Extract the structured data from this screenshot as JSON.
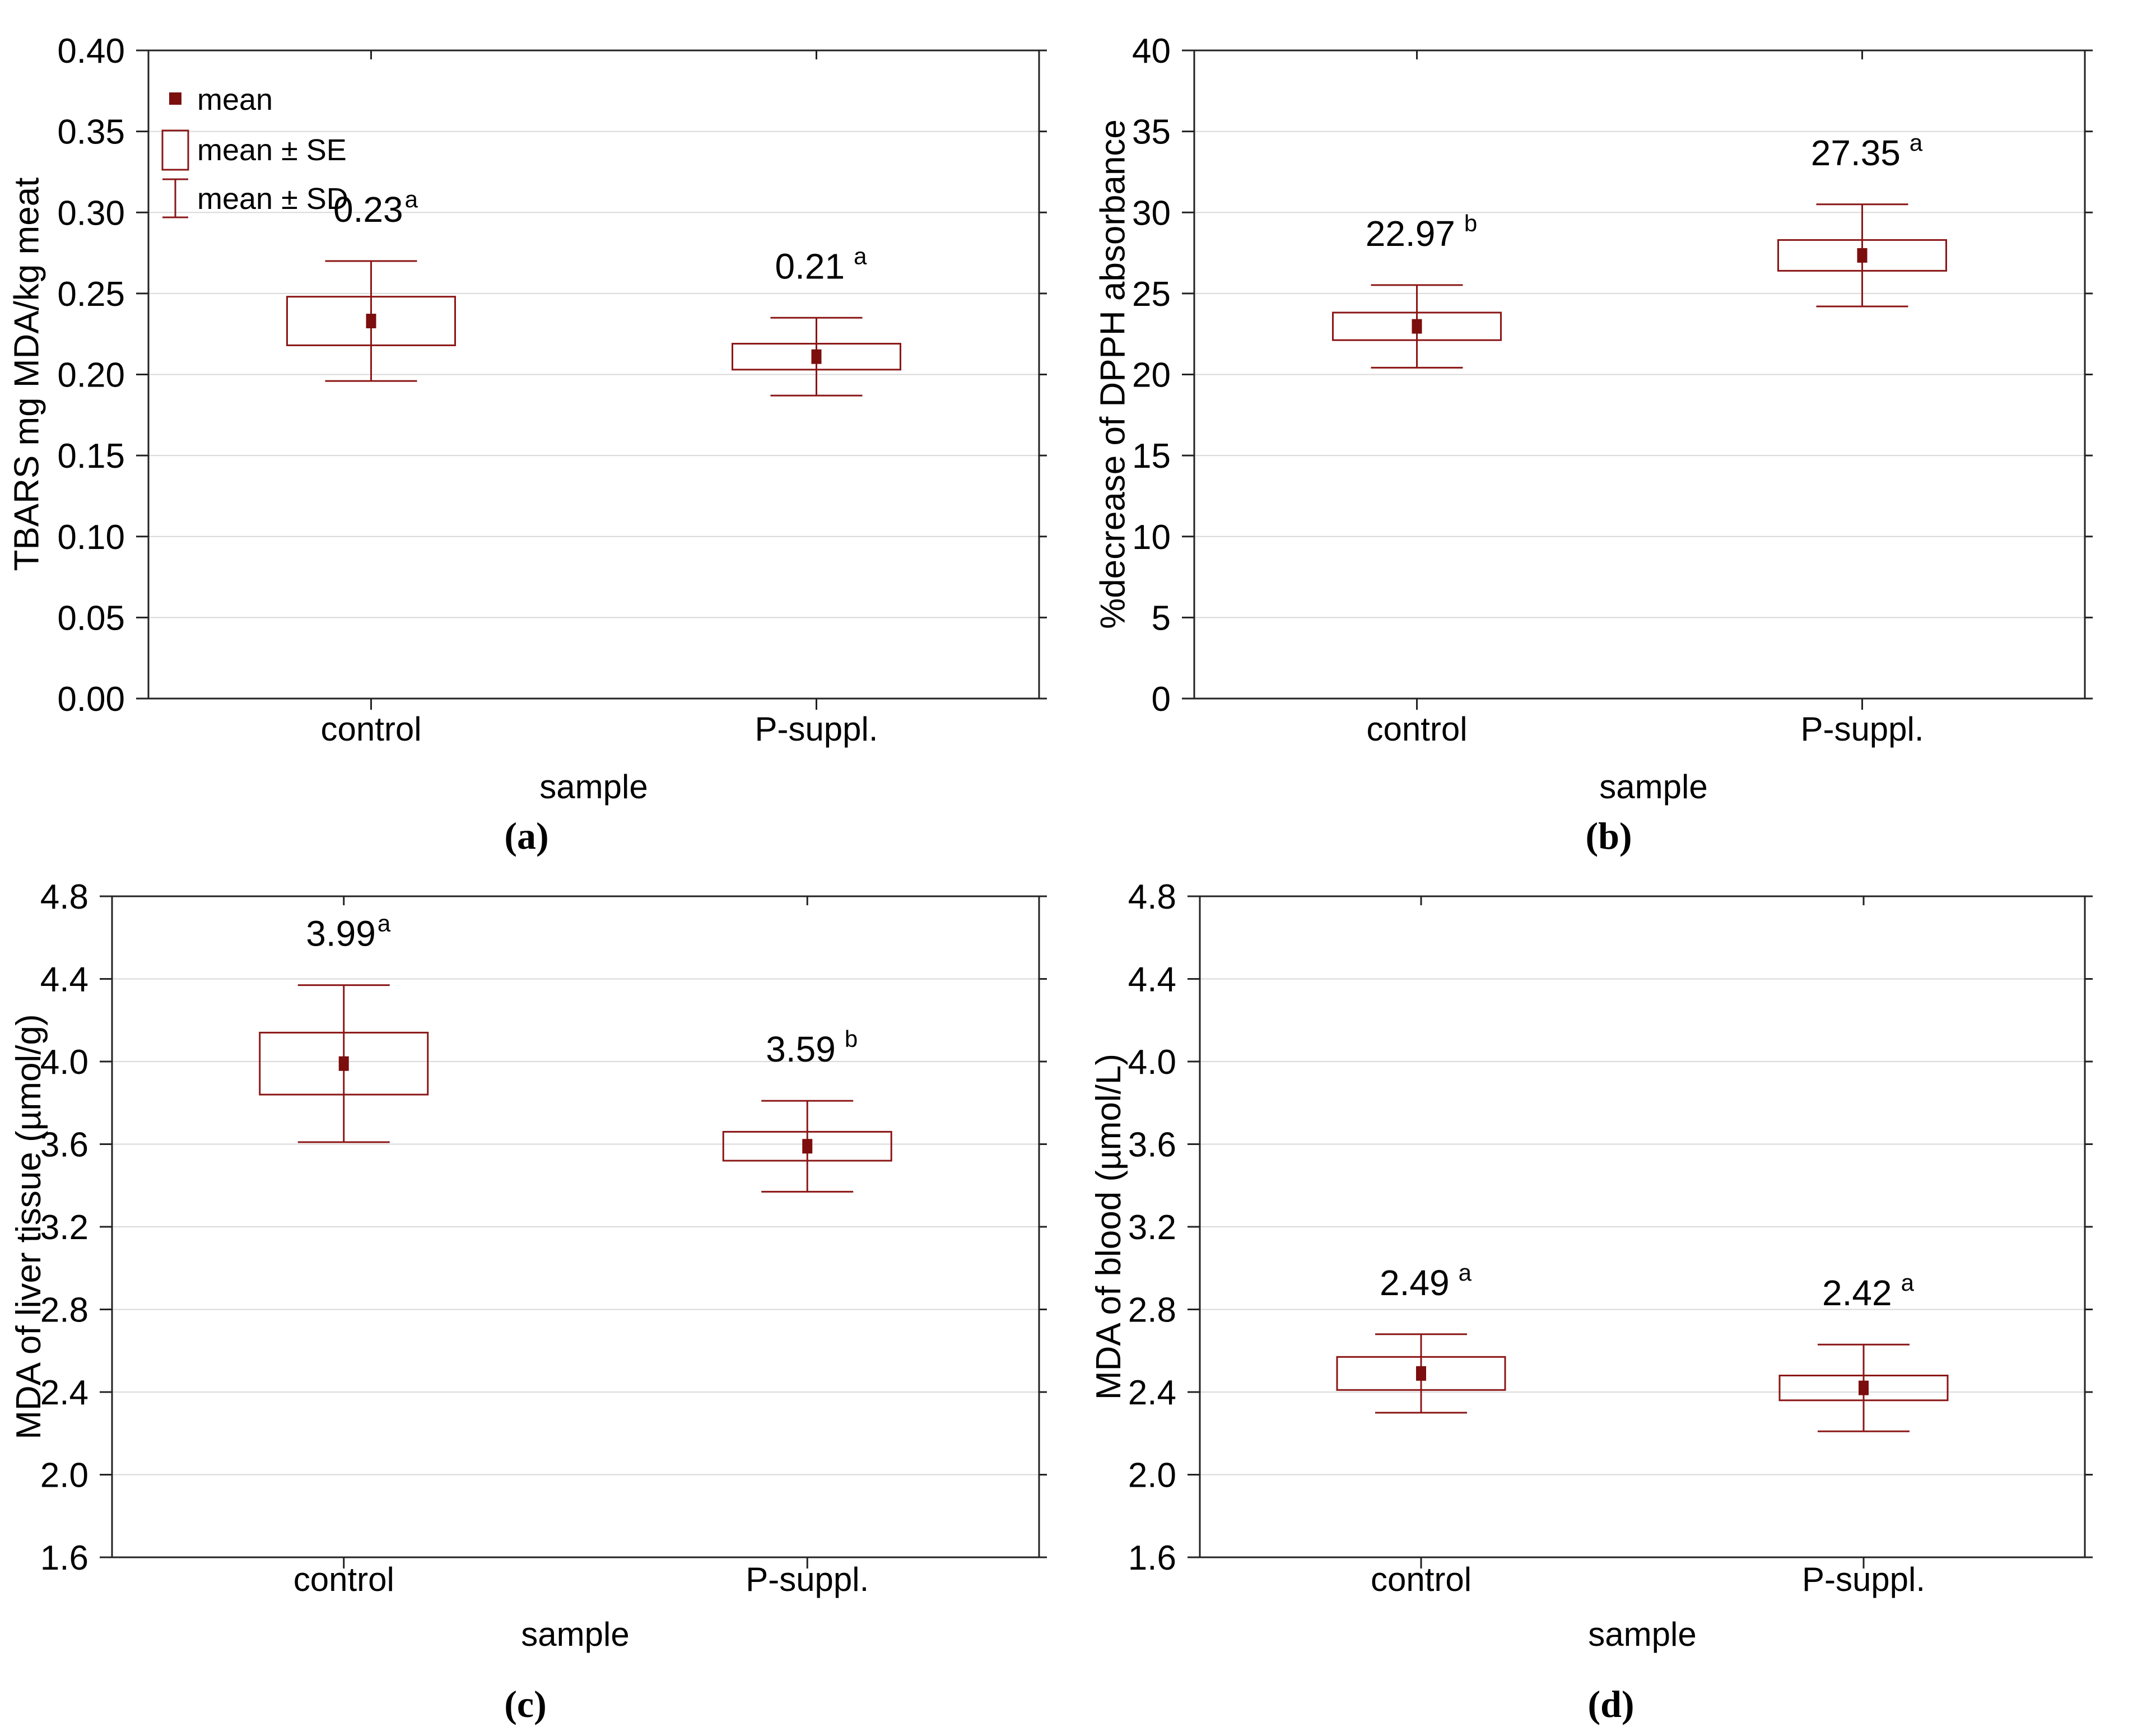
{
  "figure": {
    "background": "#ffffff",
    "kind": "2x2 panel figure of statistical box plots (mean / mean±SE / mean±SD)"
  },
  "colors": {
    "series_stroke": "#8b1616",
    "mean_fill": "#7c0e0e",
    "gridline": "#d9d9d9",
    "axis": "#222222",
    "text": "#000000"
  },
  "legend": {
    "items": [
      {
        "label": "mean",
        "glyph": "filled-square"
      },
      {
        "label": "mean ± SE",
        "glyph": "open-box"
      },
      {
        "label": "mean ± SD",
        "glyph": "whisker"
      }
    ]
  },
  "chart_data": [
    {
      "type": "box",
      "id": "a",
      "panel_label": "(a)",
      "ylabel": "TBARS mg MDA/kg meat",
      "xlabel": "sample",
      "categories": [
        "control",
        "P-suppl."
      ],
      "ylim": [
        0.0,
        0.4
      ],
      "ytick_step": 0.05,
      "ytick_decimals": 2,
      "grid": "horizontal",
      "legend": [
        "mean",
        "mean ± SE",
        "mean ± SD"
      ],
      "legend_position": "top-left-inside",
      "series": [
        {
          "category": "control",
          "mean": 0.233,
          "annotation": "0.23",
          "sig": "a",
          "sig_gap": false,
          "se": 0.015,
          "sd": 0.037,
          "box": [
            0.218,
            0.248
          ],
          "whisker": [
            0.196,
            0.27
          ]
        },
        {
          "category": "P-suppl.",
          "mean": 0.211,
          "annotation": "0.21",
          "sig": "a",
          "sig_gap": true,
          "se": 0.008,
          "sd": 0.024,
          "box": [
            0.203,
            0.219
          ],
          "whisker": [
            0.187,
            0.235
          ]
        }
      ]
    },
    {
      "type": "box",
      "id": "b",
      "panel_label": "(b)",
      "ylabel": "%decrease of DPPH absorbance",
      "xlabel": "sample",
      "categories": [
        "control",
        "P-suppl."
      ],
      "ylim": [
        0,
        40
      ],
      "ytick_step": 5,
      "ytick_decimals": 0,
      "grid": "horizontal",
      "series": [
        {
          "category": "control",
          "mean": 22.97,
          "annotation": "22.97",
          "sig": "b",
          "sig_gap": true,
          "se": 0.85,
          "sd": 2.55,
          "box": [
            22.12,
            23.82
          ],
          "whisker": [
            20.42,
            25.52
          ]
        },
        {
          "category": "P-suppl.",
          "mean": 27.35,
          "annotation": "27.35",
          "sig": "a",
          "sig_gap": true,
          "se": 0.95,
          "sd": 3.15,
          "box": [
            26.4,
            28.3
          ],
          "whisker": [
            24.2,
            30.5
          ]
        }
      ]
    },
    {
      "type": "box",
      "id": "c",
      "panel_label": "(c)",
      "ylabel": "MDA of liver tissue (µmol/g)",
      "xlabel": "sample",
      "categories": [
        "control",
        "P-suppl."
      ],
      "ylim": [
        1.6,
        4.8
      ],
      "ytick_step": 0.4,
      "ytick_decimals": 1,
      "grid": "horizontal",
      "series": [
        {
          "category": "control",
          "mean": 3.99,
          "annotation": "3.99",
          "sig": "a",
          "sig_gap": false,
          "se": 0.15,
          "sd": 0.38,
          "box": [
            3.84,
            4.14
          ],
          "whisker": [
            3.61,
            4.37
          ]
        },
        {
          "category": "P-suppl.",
          "mean": 3.59,
          "annotation": "3.59",
          "sig": "b",
          "sig_gap": true,
          "se": 0.07,
          "sd": 0.22,
          "box": [
            3.52,
            3.66
          ],
          "whisker": [
            3.37,
            3.81
          ]
        }
      ]
    },
    {
      "type": "box",
      "id": "d",
      "panel_label": "(d)",
      "ylabel": "MDA of blood (µmol/L)",
      "xlabel": "sample",
      "categories": [
        "control",
        "P-suppl."
      ],
      "ylim": [
        1.6,
        4.8
      ],
      "ytick_step": 0.4,
      "ytick_decimals": 1,
      "grid": "horizontal",
      "series": [
        {
          "category": "control",
          "mean": 2.49,
          "annotation": "2.49",
          "sig": "a",
          "sig_gap": true,
          "se": 0.08,
          "sd": 0.19,
          "box": [
            2.41,
            2.57
          ],
          "whisker": [
            2.3,
            2.68
          ]
        },
        {
          "category": "P-suppl.",
          "mean": 2.42,
          "annotation": "2.42",
          "sig": "a",
          "sig_gap": true,
          "se": 0.06,
          "sd": 0.21,
          "box": [
            2.36,
            2.48
          ],
          "whisker": [
            2.21,
            2.63
          ]
        }
      ]
    }
  ]
}
